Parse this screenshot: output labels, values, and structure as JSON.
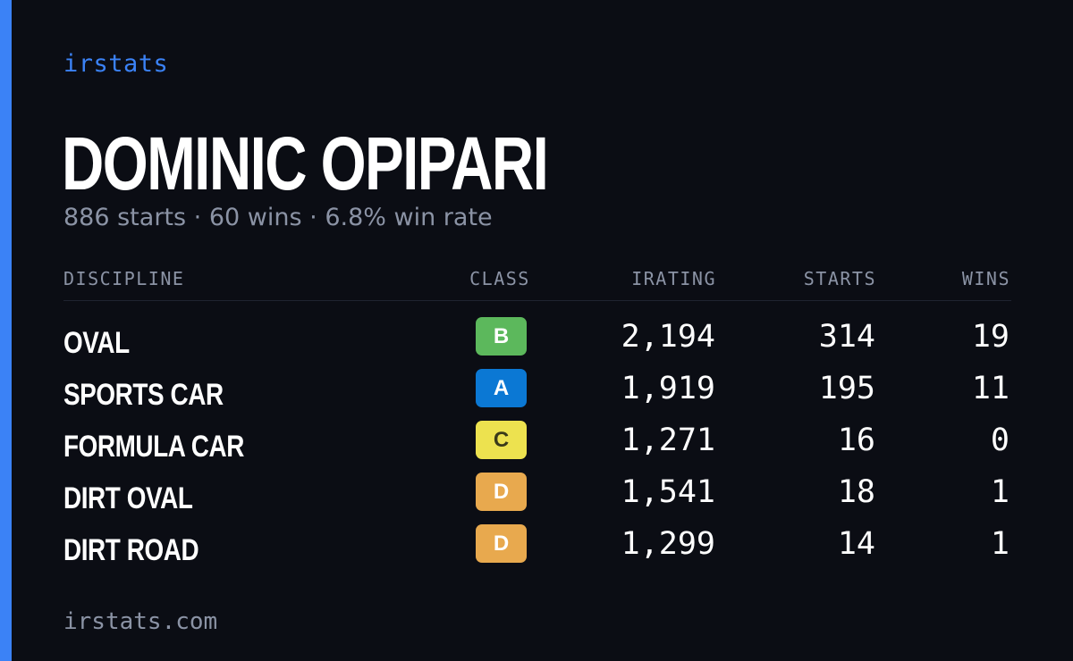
{
  "brand": "irstats",
  "driver": {
    "name": "DOMINIC OPIPARI",
    "starts_text": "886 starts",
    "wins_text": "60 wins",
    "win_rate_text": "6.8% win rate",
    "separator": "·"
  },
  "table": {
    "headers": {
      "discipline": "DISCIPLINE",
      "class": "CLASS",
      "irating": "IRATING",
      "starts": "STARTS",
      "wins": "WINS"
    },
    "rows": [
      {
        "discipline": "OVAL",
        "class": "B",
        "irating": "2,194",
        "starts": "314",
        "wins": "19"
      },
      {
        "discipline": "SPORTS CAR",
        "class": "A",
        "irating": "1,919",
        "starts": "195",
        "wins": "11"
      },
      {
        "discipline": "FORMULA CAR",
        "class": "C",
        "irating": "1,271",
        "starts": "16",
        "wins": "0"
      },
      {
        "discipline": "DIRT OVAL",
        "class": "D",
        "irating": "1,541",
        "starts": "18",
        "wins": "1"
      },
      {
        "discipline": "DIRT ROAD",
        "class": "D",
        "irating": "1,299",
        "starts": "14",
        "wins": "1"
      }
    ]
  },
  "class_colors": {
    "A": {
      "bg": "#0b78d4",
      "fg": "#ffffff"
    },
    "B": {
      "bg": "#5cb85c",
      "fg": "#ffffff"
    },
    "C": {
      "bg": "#ede24f",
      "fg": "#3a3a1a"
    },
    "D": {
      "bg": "#e8a94e",
      "fg": "#ffffff"
    }
  },
  "colors": {
    "accent": "#3b82f6",
    "background": "#0b0d14",
    "muted_text": "#8b93a5"
  },
  "footer": "irstats.com"
}
